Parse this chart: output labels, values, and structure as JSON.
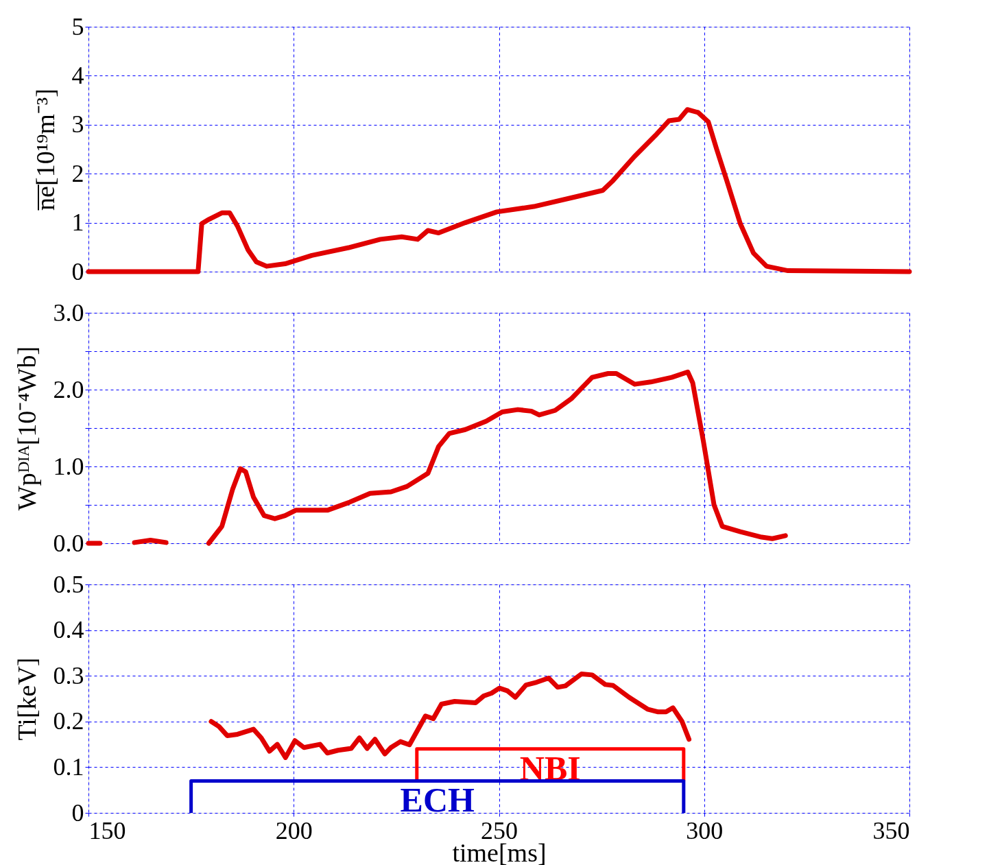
{
  "chart_data": [
    {
      "type": "line",
      "ylabel": "n̅e̅[10¹⁹m⁻³]",
      "color": "#e00000",
      "grid": true,
      "tick_labels": "y",
      "xlim": [
        150,
        350
      ],
      "xticks": [
        150,
        200,
        250,
        300,
        350
      ],
      "ylim": [
        0,
        5
      ],
      "yticks": [
        0,
        1,
        2,
        3,
        4,
        5
      ],
      "x": [
        150,
        176.7,
        177.6,
        179.4,
        182.5,
        184.4,
        186.3,
        188.9,
        190.9,
        193.4,
        197.9,
        204.4,
        213.4,
        221.1,
        226.3,
        230.2,
        232.7,
        235.3,
        241.8,
        249.5,
        258.5,
        268.8,
        275.3,
        277.8,
        283,
        288.1,
        291.4,
        293.9,
        295.9,
        298.5,
        301,
        303,
        305.5,
        308.8,
        312,
        315.2,
        320.4,
        350
      ],
      "values": [
        0,
        0,
        0.98,
        1.07,
        1.2,
        1.2,
        0.93,
        0.44,
        0.2,
        0.11,
        0.16,
        0.33,
        0.49,
        0.66,
        0.71,
        0.66,
        0.84,
        0.79,
        1.0,
        1.22,
        1.33,
        1.53,
        1.66,
        1.86,
        2.35,
        2.78,
        3.08,
        3.11,
        3.31,
        3.25,
        3.06,
        2.51,
        1.86,
        0.98,
        0.38,
        0.11,
        0.02,
        0
      ]
    },
    {
      "type": "line",
      "ylabel": "Wpᴰᴵᴬ[10⁻⁴Wb]",
      "color": "#e00000",
      "grid": true,
      "tick_labels": "y",
      "xlim": [
        150,
        350
      ],
      "xticks": [
        150,
        200,
        250,
        300,
        350
      ],
      "ylim": [
        0,
        3
      ],
      "yticks": [
        {
          "value": 0,
          "label": "0.0"
        },
        {
          "value": 0.5,
          "label": null
        },
        {
          "value": 1,
          "label": "1.0"
        },
        {
          "value": 1.5,
          "label": null
        },
        {
          "value": 2,
          "label": "2.0"
        },
        {
          "value": 2.5,
          "label": null
        },
        {
          "value": 3,
          "label": "3.0"
        }
      ],
      "x": [
        150,
        152.8,
        157,
        161.2,
        165.1,
        168.9,
        174,
        179.3,
        182.5,
        185.1,
        187,
        188.3,
        190.2,
        192.8,
        195.4,
        197.9,
        200.5,
        204.4,
        208.2,
        213.4,
        218.6,
        223.7,
        227.6,
        232.7,
        235.3,
        237.9,
        241.8,
        246.9,
        250.8,
        254.6,
        257.9,
        259.8,
        263.7,
        267.6,
        272.7,
        276.6,
        278.6,
        283.1,
        287,
        292.1,
        296,
        297.2,
        299.8,
        302.4,
        304.4,
        308.8,
        314,
        316.6,
        319.8
      ],
      "values": [
        0,
        0,
        null,
        0.01,
        0.04,
        0.01,
        null,
        0,
        0.22,
        0.7,
        0.97,
        0.93,
        0.6,
        0.36,
        0.32,
        0.36,
        0.43,
        0.43,
        0.43,
        0.53,
        0.65,
        0.67,
        0.74,
        0.91,
        1.26,
        1.43,
        1.48,
        1.59,
        1.71,
        1.74,
        1.72,
        1.67,
        1.73,
        1.88,
        2.16,
        2.21,
        2.21,
        2.07,
        2.1,
        2.16,
        2.23,
        2.09,
        1.33,
        0.5,
        0.22,
        0.15,
        0.08,
        0.06,
        0.1
      ]
    },
    {
      "type": "line",
      "ylabel": "Ti[keV]",
      "xlabel": "time[ms]",
      "grid": true,
      "xlim": [
        150,
        350
      ],
      "xticks": [
        150,
        200,
        250,
        300,
        350
      ],
      "ylim": [
        0,
        0.5
      ],
      "yticks": [
        0,
        0.1,
        0.2,
        0.3,
        0.4,
        0.5
      ],
      "series": [
        {
          "color": "#e00000",
          "x": [
            179.9,
            181.8,
            183.8,
            186.3,
            190.2,
            192.1,
            194.1,
            196,
            198,
            200.3,
            202.5,
            206.4,
            208.2,
            210.8,
            214,
            216,
            217.9,
            219.8,
            222.2,
            223.7,
            226,
            228.2,
            232.1,
            234,
            236,
            239.2,
            244.3,
            246.3,
            248.2,
            250.1,
            252.1,
            254,
            256.6,
            259.2,
            262.1,
            264.3,
            266.2,
            270.1,
            272.7,
            275.9,
            277.8,
            281.7,
            286.2,
            288.8,
            290.7,
            292.4,
            294.6,
            296.3
          ],
          "values": [
            0.2,
            0.189,
            0.169,
            0.172,
            0.183,
            0.164,
            0.135,
            0.15,
            0.121,
            0.158,
            0.143,
            0.15,
            0.131,
            0.137,
            0.141,
            0.164,
            0.141,
            0.161,
            0.129,
            0.143,
            0.156,
            0.149,
            0.212,
            0.206,
            0.238,
            0.244,
            0.241,
            0.256,
            0.262,
            0.273,
            0.267,
            0.253,
            0.28,
            0.286,
            0.295,
            0.275,
            0.278,
            0.304,
            0.302,
            0.281,
            0.279,
            0.253,
            0.227,
            0.221,
            0.221,
            0.23,
            0.2,
            0.161
          ]
        },
        {
          "name": "NBI",
          "color": "#ff0000",
          "x": [
            230,
            230,
            295,
            295
          ],
          "values": [
            0.07,
            0.14,
            0.14,
            0.07
          ]
        },
        {
          "name": "ECH",
          "color": "#0000cc",
          "x": [
            175,
            175,
            295,
            295
          ],
          "values": [
            0,
            0.07,
            0.07,
            0
          ]
        }
      ]
    }
  ]
}
